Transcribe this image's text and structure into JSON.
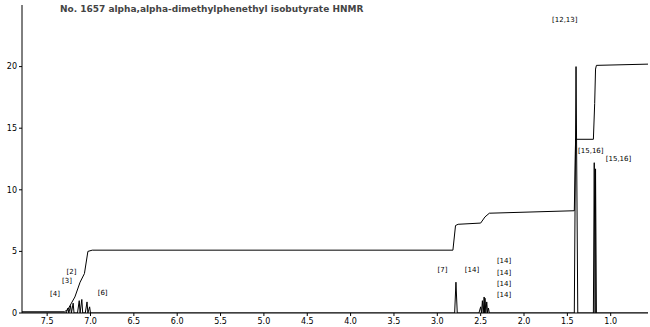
{
  "chart_data": {
    "type": "line",
    "title": "No. 1657 alpha,alpha-dimethylphenethyl isobutyrate HNMR",
    "xlim": [
      7.79,
      0.57
    ],
    "xticks": [
      {
        "value": 7.5,
        "label": "7.5"
      },
      {
        "value": 7,
        "label": "7.0"
      },
      {
        "value": 6.5,
        "label": "6.5"
      },
      {
        "value": 6,
        "label": "6.0"
      },
      {
        "value": 5.5,
        "label": "5.5"
      },
      {
        "value": 5,
        "label": "5.0"
      },
      {
        "value": 4.5,
        "label": "4.5"
      },
      {
        "value": 4,
        "label": "4.0"
      },
      {
        "value": 3.5,
        "label": "3.5"
      },
      {
        "value": 3,
        "label": "3.0"
      },
      {
        "value": 2.5,
        "label": "2.5"
      },
      {
        "value": 2,
        "label": "2.0"
      },
      {
        "value": 1.5,
        "label": "1.5"
      },
      {
        "value": 1,
        "label": "1.0"
      }
    ],
    "ylim": [
      0,
      25
    ],
    "yticks": [
      0,
      5,
      10,
      15,
      20
    ],
    "color": "#000000",
    "spectrum": {
      "x": [
        7.79,
        7.28,
        7.26,
        7.25,
        7.23,
        7.22,
        7.2,
        7.19,
        7.15,
        7.13,
        7.12,
        7.1,
        7.09,
        7.06,
        7.04,
        7.03,
        7.01,
        7.0,
        2.8,
        2.785,
        2.77,
        2.52,
        2.5,
        2.49,
        2.48,
        2.47,
        2.46,
        2.455,
        2.45,
        2.44,
        2.43,
        2.42,
        2.41,
        2.4,
        1.42,
        1.4,
        1.38,
        1.2,
        1.19,
        1.18,
        1.175,
        1.165,
        0.57
      ],
      "values": [
        0,
        0,
        0.4,
        0,
        0.6,
        0,
        0.8,
        0,
        0,
        1.0,
        0,
        1.1,
        0,
        0,
        0.9,
        0,
        0.5,
        0,
        0,
        2.5,
        0,
        0,
        0.5,
        0,
        1.0,
        0,
        1.3,
        0,
        1.2,
        0,
        0.9,
        0,
        0.4,
        0,
        0,
        20,
        0,
        0,
        12.2,
        0,
        11.7,
        0,
        0
      ]
    },
    "integral": {
      "x": [
        7.79,
        7.3,
        7.26,
        7.22,
        7.18,
        7.12,
        7.07,
        7.03,
        6.98,
        2.82,
        2.79,
        2.76,
        2.5,
        2.45,
        2.4,
        1.42,
        1.405,
        1.39,
        1.2,
        1.185,
        1.175,
        1.165,
        0.57
      ],
      "values": [
        0.1,
        0.1,
        0.3,
        0.8,
        1.3,
        2.5,
        3.2,
        5.0,
        5.1,
        5.1,
        7.1,
        7.2,
        7.3,
        7.8,
        8.1,
        8.3,
        14.1,
        14.1,
        14.1,
        17.0,
        19.8,
        20.1,
        20.2
      ]
    },
    "annotations": [
      {
        "text": "[4]",
        "x": 7.41,
        "y": 1.6
      },
      {
        "text": "[3]",
        "x": 7.27,
        "y": 2.6
      },
      {
        "text": "[2]",
        "x": 7.22,
        "y": 3.4
      },
      {
        "text": "[6]",
        "x": 6.86,
        "y": 1.7
      },
      {
        "text": "[7]",
        "x": 2.94,
        "y": 3.5
      },
      {
        "text": "[14]",
        "x": 2.6,
        "y": 3.5
      },
      {
        "text": "[14]",
        "x": 2.23,
        "y": 4.3
      },
      {
        "text": "[14]",
        "x": 2.23,
        "y": 3.3
      },
      {
        "text": "[14]",
        "x": 2.23,
        "y": 2.4
      },
      {
        "text": "[14]",
        "x": 2.23,
        "y": 1.5
      },
      {
        "text": "[12,13]",
        "x": 1.53,
        "y": 23.8
      },
      {
        "text": "[15,16]",
        "x": 1.23,
        "y": 13.2
      },
      {
        "text": "[15,16]",
        "x": 0.91,
        "y": 12.5
      }
    ]
  }
}
